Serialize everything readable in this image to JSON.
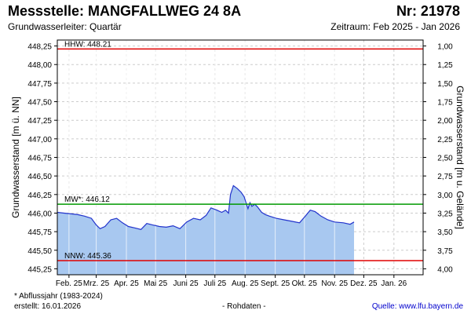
{
  "header": {
    "title": "Messstelle: MANGFALLWEG 24 8A",
    "nr": "Nr: 21978",
    "aquifer": "Grundwasserleiter: Quartär",
    "period": "Zeitraum: Feb 2025 - Jan 2026"
  },
  "footer": {
    "footnote": "* Abflussjahr (1983-2024)",
    "created": "erstellt:  16.01.2026",
    "raw": "- Rohdaten -",
    "source": "Quelle: www.lfu.bayern.de"
  },
  "chart_data": {
    "type": "area",
    "ylabel": "Grundwasserstand [m ü. NN]",
    "y2label": "Grundwasserstand [m u. Gelände]",
    "ylim": [
      445.17,
      448.33
    ],
    "yticks": [
      "448,25",
      "448,00",
      "447,75",
      "447,50",
      "447,25",
      "447,00",
      "446,75",
      "446,50",
      "446,25",
      "446,00",
      "445,75",
      "445,50",
      "445,25"
    ],
    "yticks_values": [
      448.25,
      448.0,
      447.75,
      447.5,
      447.25,
      447.0,
      446.75,
      446.5,
      446.25,
      446.0,
      445.75,
      445.5,
      445.25
    ],
    "y2ticks": [
      "1,00",
      "1,25",
      "1,50",
      "1,75",
      "2,00",
      "2,25",
      "2,50",
      "2,75",
      "3,00",
      "3,25",
      "3,50",
      "3,75",
      "4,00"
    ],
    "xticks": [
      "Feb. 25",
      "Mrz. 25",
      "Apr. 25",
      "Mai 25",
      "Juni 25",
      "Juli 25",
      "Aug. 25",
      "Sept. 25",
      "Okt. 25",
      "Nov. 25",
      "Dez. 25",
      "Jan. 26"
    ],
    "xlim": [
      "2025-01-20",
      "2026-01-31"
    ],
    "grid": true,
    "reference_lines": [
      {
        "label": "HHW: 448.21",
        "value": 448.21,
        "color": "#e00000"
      },
      {
        "label": "MW*: 446.12",
        "value": 446.12,
        "color": "#009900"
      },
      {
        "label": "NNW: 445.36",
        "value": 445.36,
        "color": "#e00000"
      }
    ],
    "series": [
      {
        "color": "#2233cc",
        "fill": "#a8c8f0",
        "x": [
          "2025-01-20",
          "2025-01-27",
          "2025-02-03",
          "2025-02-10",
          "2025-02-17",
          "2025-02-24",
          "2025-03-01",
          "2025-03-05",
          "2025-03-10",
          "2025-03-16",
          "2025-03-22",
          "2025-03-28",
          "2025-04-03",
          "2025-04-10",
          "2025-04-16",
          "2025-04-22",
          "2025-04-28",
          "2025-05-05",
          "2025-05-12",
          "2025-05-19",
          "2025-05-26",
          "2025-06-02",
          "2025-06-09",
          "2025-06-16",
          "2025-06-22",
          "2025-06-27",
          "2025-07-03",
          "2025-07-08",
          "2025-07-12",
          "2025-07-15",
          "2025-07-17",
          "2025-07-20",
          "2025-07-24",
          "2025-07-28",
          "2025-07-31",
          "2025-08-02",
          "2025-08-04",
          "2025-08-06",
          "2025-08-08",
          "2025-08-11",
          "2025-08-14",
          "2025-08-18",
          "2025-08-22",
          "2025-08-26",
          "2025-09-02",
          "2025-09-10",
          "2025-09-18",
          "2025-09-26",
          "2025-10-02",
          "2025-10-07",
          "2025-10-12",
          "2025-10-18",
          "2025-10-25",
          "2025-11-01",
          "2025-11-10",
          "2025-11-17",
          "2025-11-21"
        ],
        "y": [
          446.01,
          446.0,
          445.99,
          445.98,
          445.96,
          445.93,
          445.84,
          445.79,
          445.82,
          445.91,
          445.93,
          445.87,
          445.82,
          445.8,
          445.78,
          445.86,
          445.84,
          445.82,
          445.81,
          445.83,
          445.79,
          445.88,
          445.93,
          445.91,
          445.97,
          446.07,
          446.04,
          446.01,
          446.04,
          446.0,
          446.25,
          446.37,
          446.33,
          446.28,
          446.22,
          446.14,
          446.06,
          446.14,
          446.09,
          446.12,
          446.08,
          446.01,
          445.98,
          445.96,
          445.93,
          445.91,
          445.89,
          445.87,
          445.96,
          446.04,
          446.02,
          445.96,
          445.91,
          445.88,
          445.87,
          445.85,
          445.88
        ]
      }
    ]
  }
}
